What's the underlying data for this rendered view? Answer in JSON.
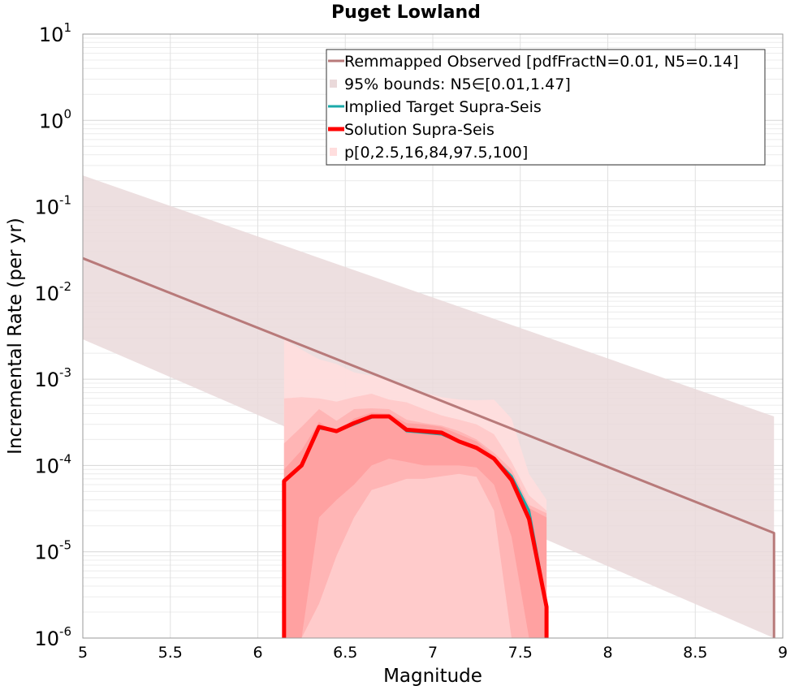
{
  "chart_data": {
    "type": "line",
    "title": "Puget Lowland",
    "xlabel": "Magnitude",
    "ylabel": "Incremental Rate (per yr)",
    "xlim": [
      5,
      9
    ],
    "ylim": [
      1e-06,
      10
    ],
    "yscale": "log",
    "xticks": [
      "5",
      "5.5",
      "6",
      "6.5",
      "7",
      "7.5",
      "8",
      "8.5",
      "9"
    ],
    "yticks": [
      {
        "base": "10",
        "exp": "1",
        "value": 10
      },
      {
        "base": "10",
        "exp": "0",
        "value": 1
      },
      {
        "base": "10",
        "exp": "-1",
        "value": 0.1
      },
      {
        "base": "10",
        "exp": "-2",
        "value": 0.01
      },
      {
        "base": "10",
        "exp": "-3",
        "value": 0.001
      },
      {
        "base": "10",
        "exp": "-4",
        "value": 0.0001
      },
      {
        "base": "10",
        "exp": "-5",
        "value": 1e-05
      },
      {
        "base": "10",
        "exp": "-6",
        "value": 1e-06
      }
    ],
    "grid": true,
    "legend_position": "top-right",
    "legend": [
      {
        "label": "Remmapped Observed [pdfFractN=0.01, N5=0.14]",
        "color": "#b87a7a",
        "kind": "line"
      },
      {
        "label": "95% bounds: N5∈[0.01,1.47]",
        "color": "#ead9da",
        "kind": "fill"
      },
      {
        "label": "Implied Target Supra-Seis",
        "color": "#1aaaaa",
        "kind": "line"
      },
      {
        "label": "Solution Supra-Seis",
        "color": "#ff0000",
        "kind": "thick"
      },
      {
        "label": "p[0,2.5,16,84,97.5,100]",
        "color": "#ffdede",
        "kind": "fill"
      }
    ],
    "series": [
      {
        "name": "Remmapped Observed [pdfFractN=0.01, N5=0.14]",
        "color": "#b87a7a",
        "x": [
          5.0,
          8.95,
          8.95
        ],
        "y": [
          0.0252,
          1.65e-05,
          8e-07
        ]
      },
      {
        "name": "95% bounds: N5∈[0.01,1.47]",
        "color": "#ead9da",
        "x": [
          5.0,
          8.95,
          8.95
        ],
        "upper": [
          0.23,
          0.00037,
          0.00037
        ],
        "lower": [
          0.0029,
          7e-07,
          7e-07
        ]
      },
      {
        "name": "Implied Target Supra-Seis",
        "color": "#1aaaaa",
        "x": [
          6.15,
          6.25,
          6.35,
          6.45,
          6.55,
          6.65,
          6.75,
          6.85,
          6.95,
          7.05,
          7.15,
          7.25,
          7.35,
          7.45,
          7.55,
          7.65
        ],
        "y": [
          6.8e-05,
          9.9e-05,
          0.00027,
          0.00025,
          0.0003,
          0.00036,
          0.00037,
          0.00025,
          0.00024,
          0.00023,
          0.00019,
          0.00016,
          0.00012,
          7.5e-05,
          3e-05,
          2.4e-06
        ]
      },
      {
        "name": "Solution Supra-Seis",
        "color": "#ff0000",
        "x": [
          6.15,
          6.15,
          6.25,
          6.35,
          6.45,
          6.55,
          6.65,
          6.75,
          6.85,
          6.95,
          7.05,
          7.15,
          7.25,
          7.35,
          7.45,
          7.55,
          7.65,
          7.65
        ],
        "y": [
          8e-07,
          6.6e-05,
          0.0001,
          0.00028,
          0.00025,
          0.00031,
          0.00037,
          0.00037,
          0.00026,
          0.00025,
          0.00024,
          0.00019,
          0.00016,
          0.00012,
          6.8e-05,
          2.4e-05,
          2.3e-06,
          8e-07
        ]
      },
      {
        "name": "p[0,2.5,16,84,97.5,100]",
        "color": "#ffdede",
        "x": [
          6.15,
          6.25,
          6.35,
          6.45,
          6.55,
          6.65,
          6.75,
          6.85,
          6.95,
          7.05,
          7.15,
          7.25,
          7.35,
          7.45,
          7.55,
          7.65
        ],
        "bands": [
          {
            "lower": [
              8e-07,
              8e-07,
              8e-07,
              8e-07,
              8e-07,
              8e-07,
              8e-07,
              8e-07,
              8e-07,
              8e-07,
              8e-07,
              8e-07,
              8e-07,
              8e-07,
              8e-07,
              8e-07
            ],
            "upper": [
              0.0029,
              0.0022,
              0.0017,
              0.0015,
              0.0012,
              0.0011,
              0.001,
              0.0008,
              0.0007,
              0.00062,
              0.00058,
              0.00057,
              0.00058,
              0.00035,
              8e-05,
              4e-05
            ]
          },
          {
            "lower": [
              8e-07,
              8e-07,
              8e-07,
              8e-07,
              9.5e-07,
              9.5e-07,
              9.5e-07,
              9.5e-07,
              9.5e-07,
              9.5e-07,
              9.5e-07,
              9.5e-07,
              8e-07,
              8e-07,
              8e-07,
              8e-07
            ],
            "upper": [
              0.0006,
              0.00062,
              0.0006,
              0.00055,
              0.00062,
              0.00068,
              0.00058,
              0.00054,
              0.00045,
              0.00038,
              0.00034,
              0.0003,
              0.00023,
              0.00011,
              4.5e-05,
              3e-05
            ]
          },
          {
            "lower": [
              8e-07,
              8e-07,
              2.5e-06,
              9e-06,
              2.5e-05,
              5.2e-05,
              6e-05,
              7e-05,
              7e-05,
              7.5e-05,
              8e-05,
              7.4e-05,
              3e-05,
              8e-07,
              8e-07,
              8e-07
            ],
            "upper": [
              0.00018,
              0.00028,
              0.00045,
              0.00033,
              0.00045,
              0.00046,
              0.00045,
              0.00034,
              0.00031,
              0.00029,
              0.00025,
              0.0002,
              0.00014,
              9e-05,
              3.5e-05,
              2.8e-05
            ]
          },
          {
            "lower": [
              8e-07,
              8e-07,
              2.5e-05,
              4e-05,
              6e-05,
              0.0001,
              0.00012,
              0.00011,
              0.0001,
              0.0001,
              0.0001,
              9.5e-05,
              6e-05,
              1.5e-05,
              8e-07,
              8e-07
            ],
            "upper": [
              9e-05,
              0.00015,
              0.00032,
              0.00024,
              0.00035,
              0.00041,
              0.0004,
              0.00031,
              0.0003,
              0.00028,
              0.00023,
              0.00019,
              0.00013,
              8e-05,
              3.2e-05,
              2.5e-05
            ]
          }
        ]
      }
    ]
  }
}
